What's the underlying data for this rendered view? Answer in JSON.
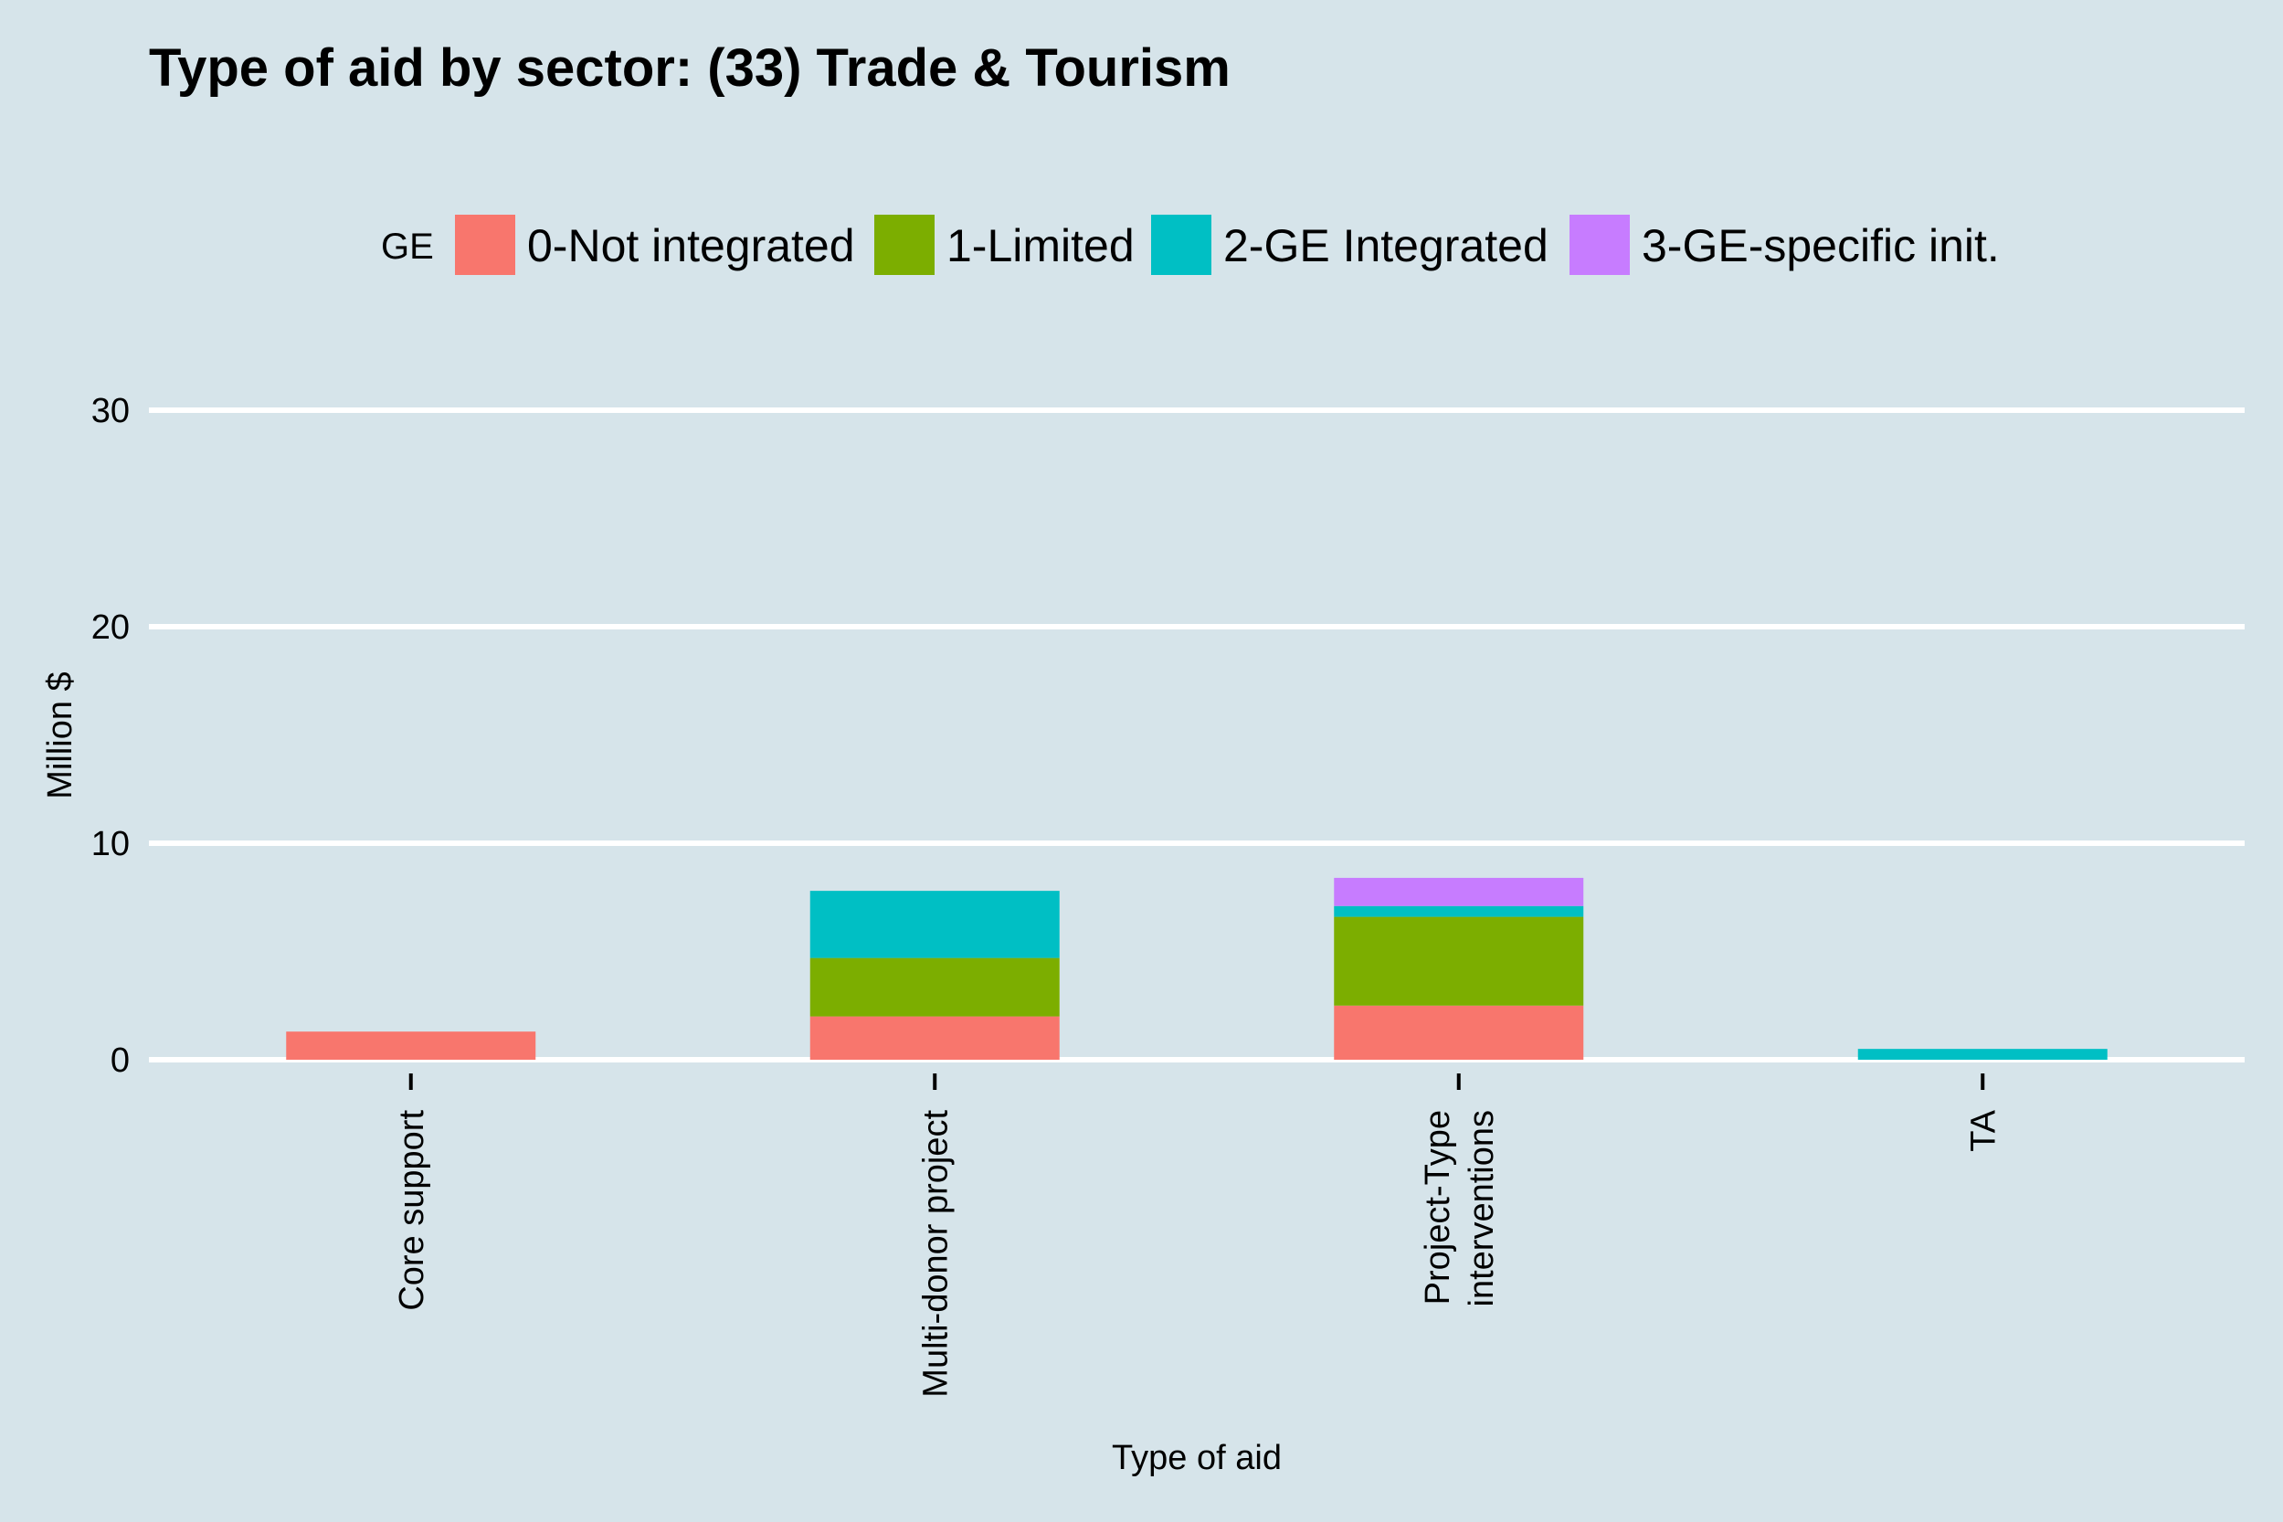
{
  "chart_data": {
    "type": "bar",
    "stacked": true,
    "title": "Type of aid by sector:  (33) Trade & Tourism",
    "xlabel": "Type of aid",
    "ylabel": "Million $",
    "ylim": [
      0,
      32
    ],
    "yticks": [
      0,
      10,
      20,
      30
    ],
    "grid": true,
    "legend": {
      "title": "GE",
      "position": "top"
    },
    "categories": [
      [
        "Core support"
      ],
      [
        "Multi-donor project"
      ],
      [
        "Project-Type",
        "interventions"
      ],
      [
        "TA"
      ]
    ],
    "series": [
      {
        "name": "0-Not integrated",
        "color": "#f8766d",
        "values": [
          1.3,
          2.0,
          2.5,
          0
        ]
      },
      {
        "name": "1-Limited",
        "color": "#7cae00",
        "values": [
          0,
          2.7,
          4.1,
          0
        ]
      },
      {
        "name": "2-GE Integrated",
        "color": "#00bfc4",
        "values": [
          0,
          3.1,
          0.5,
          0.5
        ]
      },
      {
        "name": "3-GE-specific init.",
        "color": "#c77cff",
        "values": [
          0,
          0,
          1.3,
          0
        ]
      }
    ]
  }
}
